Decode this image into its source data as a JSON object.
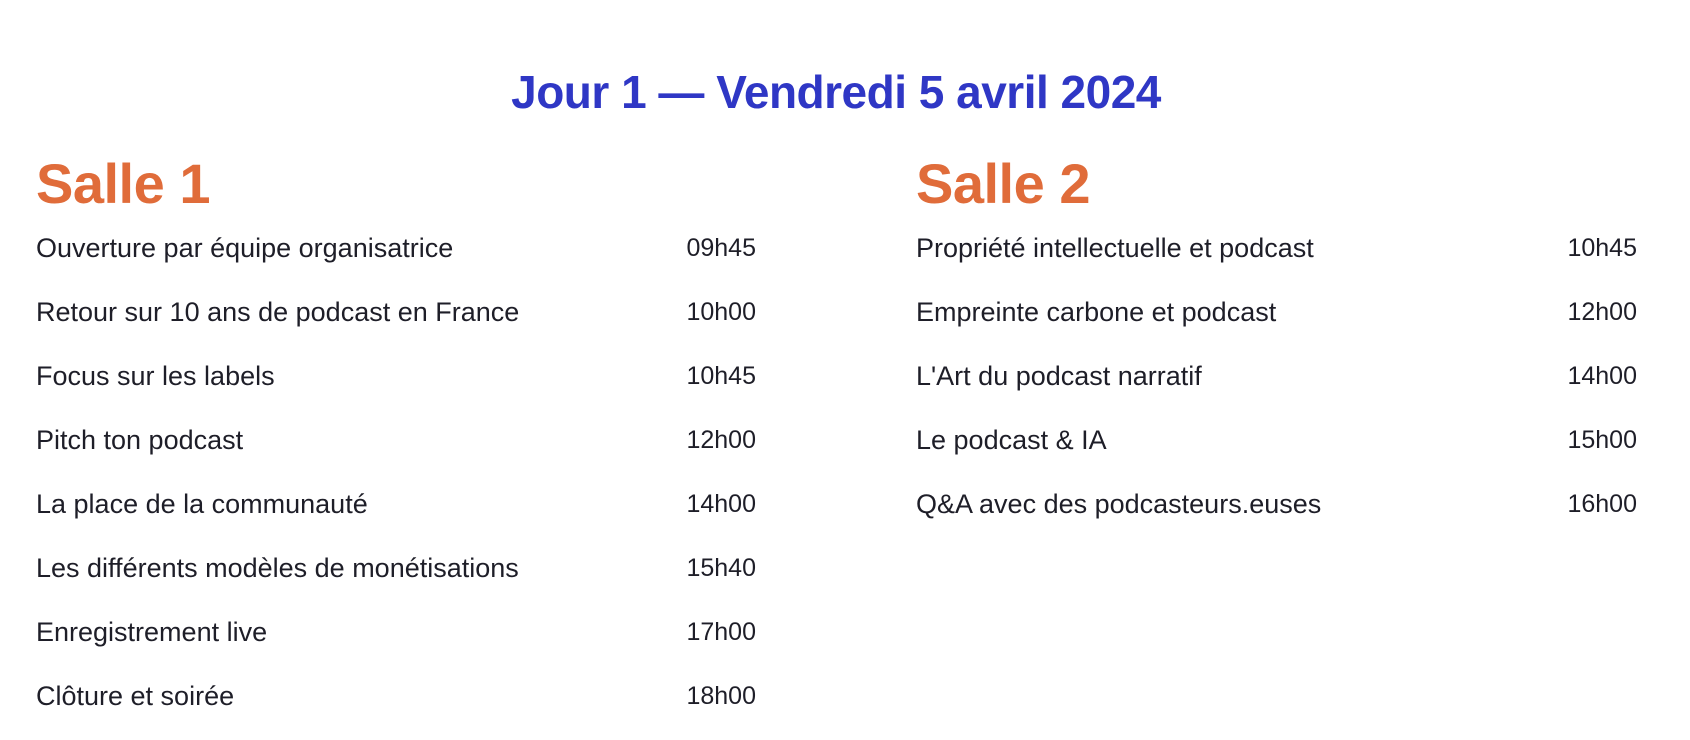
{
  "title": "Jour 1 — Vendredi 5 avril 2024",
  "colors": {
    "title": "#2f37c5",
    "room": "#e06c3a",
    "text": "#1e1e28"
  },
  "rooms": [
    {
      "name": "Salle 1",
      "sessions": [
        {
          "title": "Ouverture par équipe organisatrice",
          "time": "09h45"
        },
        {
          "title": "Retour sur 10 ans de podcast en France",
          "time": "10h00"
        },
        {
          "title": "Focus sur les labels",
          "time": "10h45"
        },
        {
          "title": "Pitch ton podcast",
          "time": "12h00"
        },
        {
          "title": "La place de la communauté",
          "time": "14h00"
        },
        {
          "title": "Les différents modèles de monétisations",
          "time": "15h40"
        },
        {
          "title": "Enregistrement live",
          "time": "17h00"
        },
        {
          "title": "Clôture et soirée",
          "time": "18h00"
        }
      ]
    },
    {
      "name": "Salle 2",
      "sessions": [
        {
          "title": "Propriété intellectuelle et podcast",
          "time": "10h45"
        },
        {
          "title": "Empreinte carbone et podcast",
          "time": "12h00"
        },
        {
          "title": "L'Art du podcast narratif",
          "time": "14h00"
        },
        {
          "title": "Le podcast & IA",
          "time": "15h00"
        },
        {
          "title": "Q&A avec des podcasteurs.euses",
          "time": "16h00"
        }
      ]
    }
  ]
}
